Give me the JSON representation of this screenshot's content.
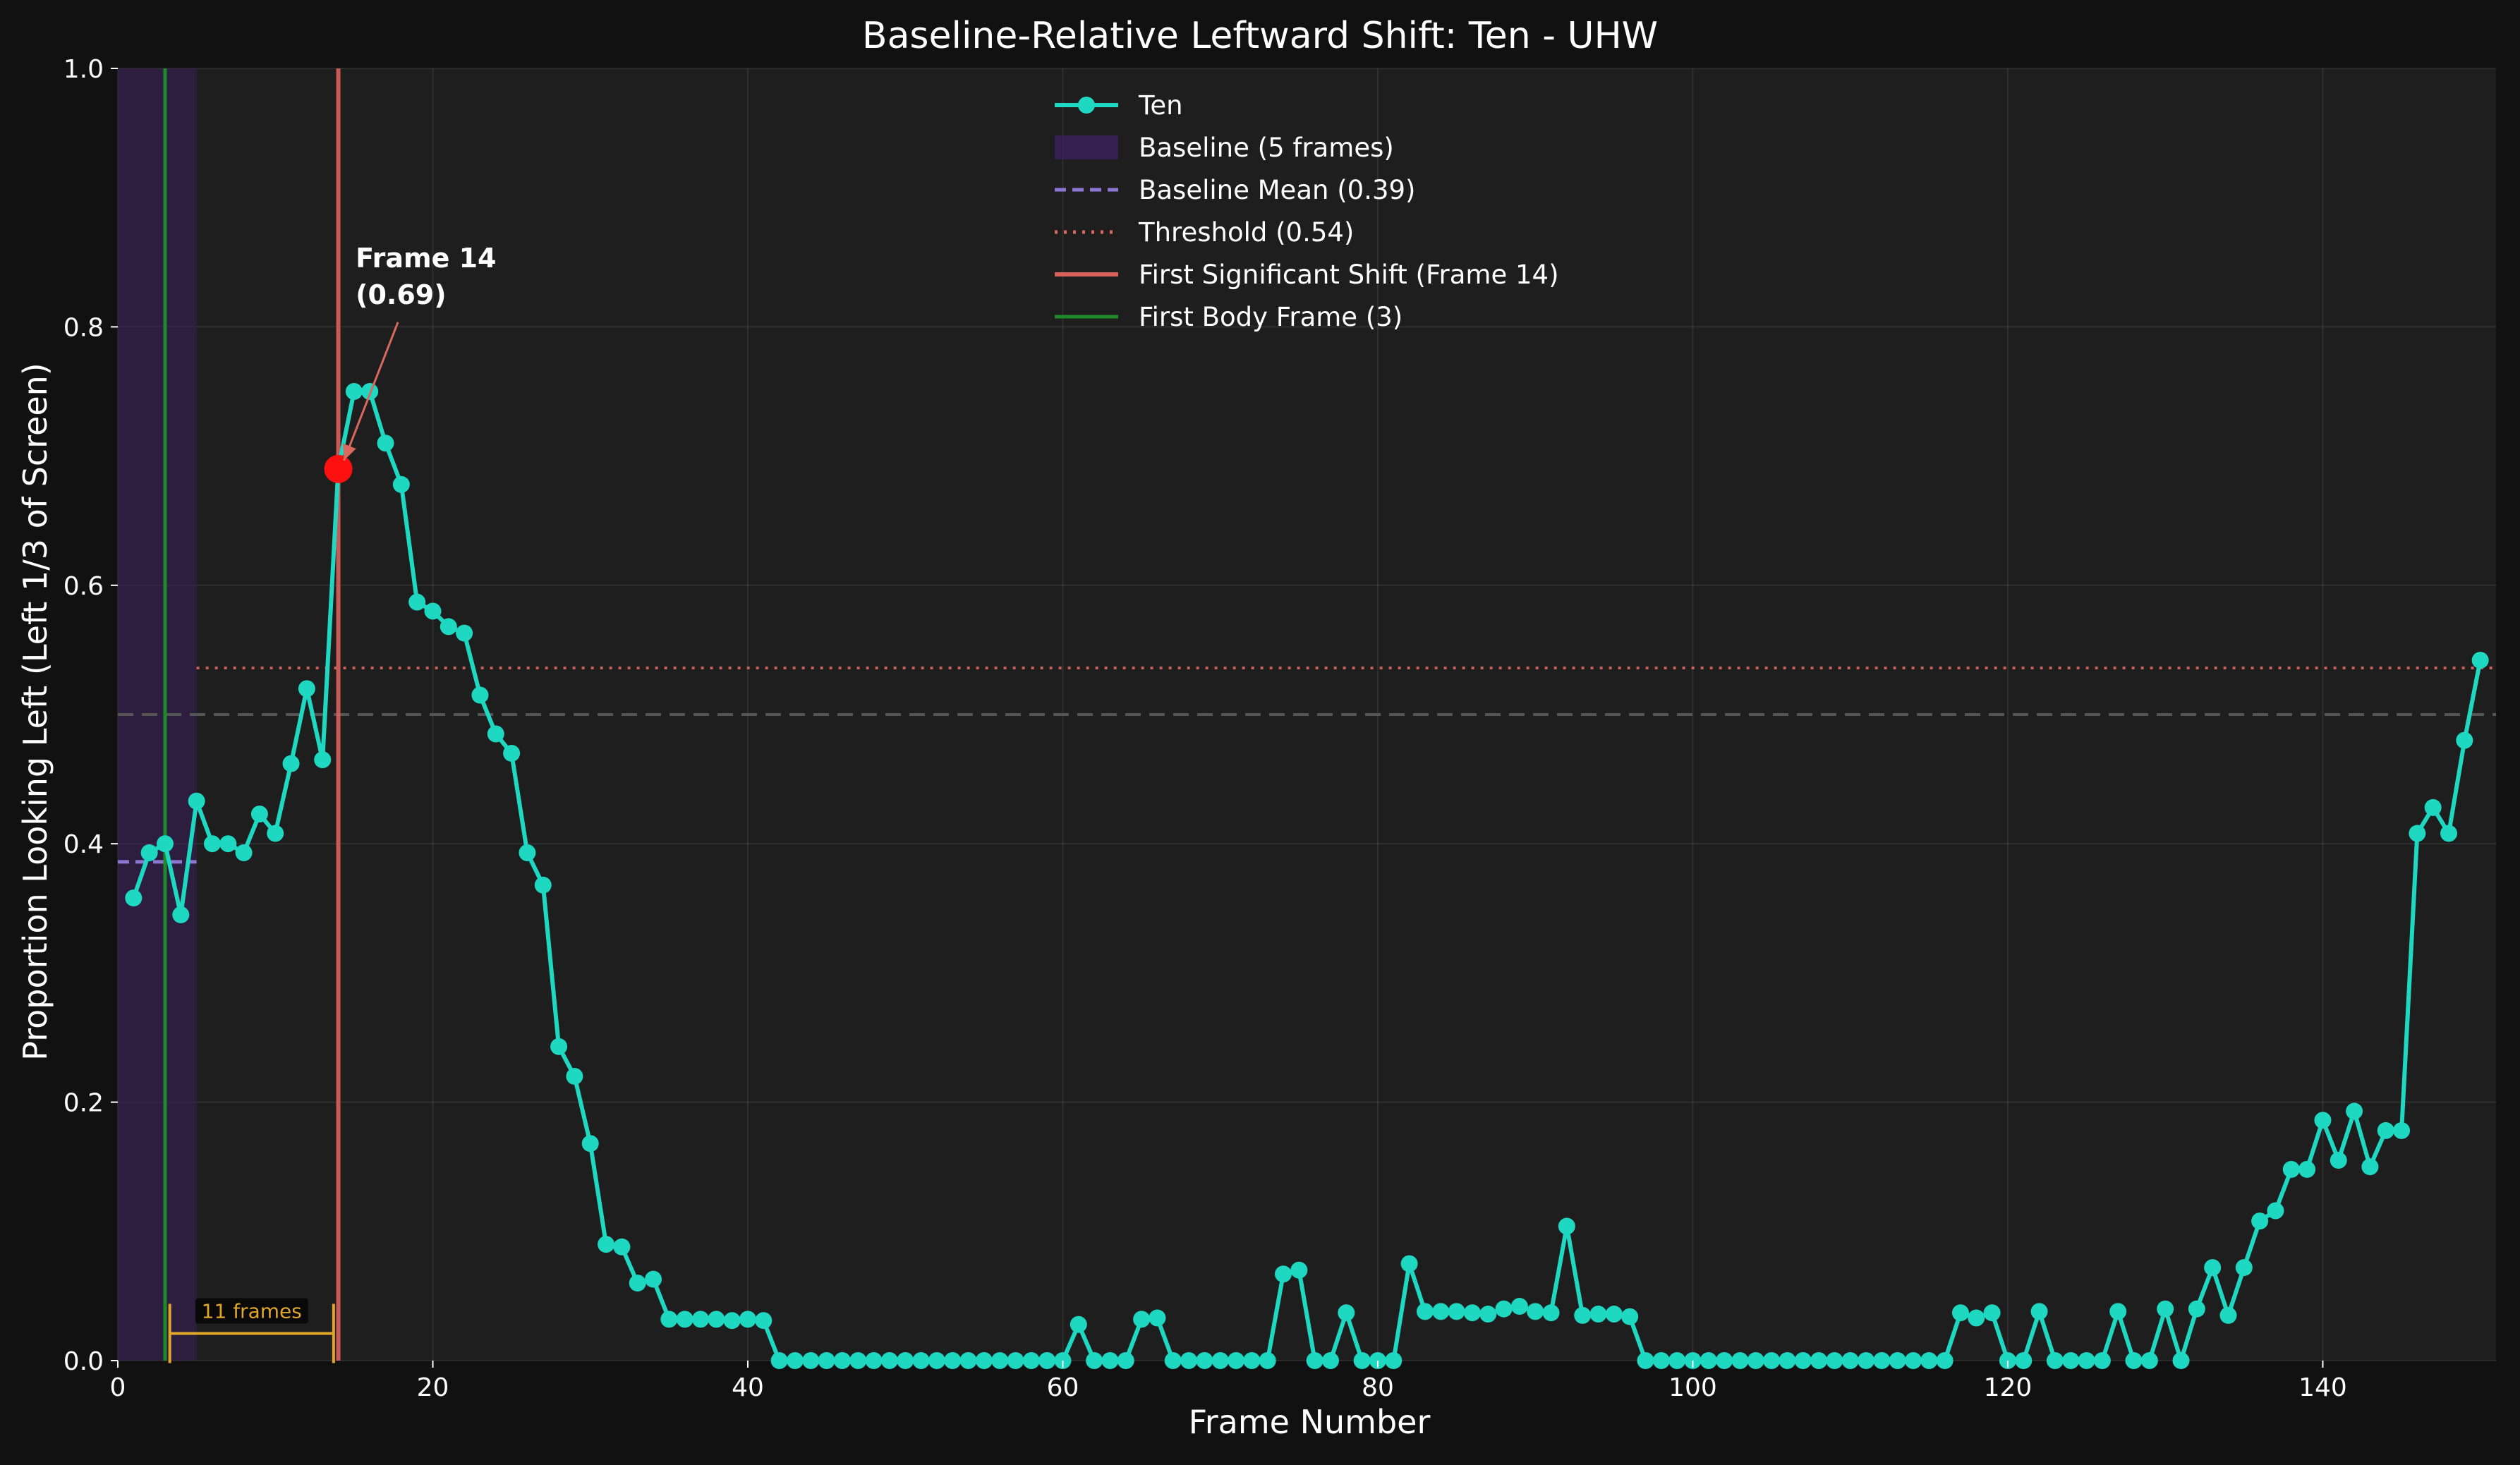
{
  "chart_data": {
    "type": "line",
    "title": "Baseline-Relative Leftward Shift: Ten - UHW",
    "xlabel": "Frame Number",
    "ylabel": "Proportion Looking Left (Left 1/3 of Screen)",
    "xlim": [
      0,
      151
    ],
    "ylim": [
      0,
      1.0
    ],
    "xticks": [
      "0",
      "20",
      "40",
      "60",
      "80",
      "100",
      "120",
      "140"
    ],
    "yticks": [
      "0.0",
      "0.2",
      "0.4",
      "0.6",
      "0.8",
      "1.0"
    ],
    "grid": true,
    "legend_position": "top-center",
    "colors": {
      "figure_bg": "#111111",
      "axes_bg": "#1e1e1e",
      "series": "#1ed8c1",
      "baseline_band": "#3a1f5c",
      "baseline_mean": "#8a78d4",
      "threshold": "#d9685f",
      "first_shift": "#d9605b",
      "first_body": "#1e8a2a",
      "reference": "#555555",
      "bracket": "#e0a62a",
      "highlight": "#ff1010",
      "text": "#ffffff"
    },
    "series": [
      {
        "name": "Ten",
        "x": [
          1,
          2,
          3,
          4,
          5,
          6,
          7,
          8,
          9,
          10,
          11,
          12,
          13,
          14,
          15,
          16,
          17,
          18,
          19,
          20,
          21,
          22,
          23,
          24,
          25,
          26,
          27,
          28,
          29,
          30,
          31,
          32,
          33,
          34,
          35,
          36,
          37,
          38,
          39,
          40,
          41,
          42,
          43,
          44,
          45,
          46,
          47,
          48,
          49,
          50,
          51,
          52,
          53,
          54,
          55,
          56,
          57,
          58,
          59,
          60,
          61,
          62,
          63,
          64,
          65,
          66,
          67,
          68,
          69,
          70,
          71,
          72,
          73,
          74,
          75,
          76,
          77,
          78,
          79,
          80,
          81,
          82,
          83,
          84,
          85,
          86,
          87,
          88,
          89,
          90,
          91,
          92,
          93,
          94,
          95,
          96,
          97,
          98,
          99,
          100,
          101,
          102,
          103,
          104,
          105,
          106,
          107,
          108,
          109,
          110,
          111,
          112,
          113,
          114,
          115,
          116,
          117,
          118,
          119,
          120,
          121,
          122,
          123,
          124,
          125,
          126,
          127,
          128,
          129,
          130,
          131,
          132,
          133,
          134,
          135,
          136,
          137,
          138,
          139,
          140,
          141,
          142,
          143,
          144,
          145,
          146,
          147,
          148,
          149,
          150
        ],
        "values": [
          0.358,
          0.393,
          0.4,
          0.345,
          0.433,
          0.4,
          0.4,
          0.393,
          0.423,
          0.408,
          0.462,
          0.52,
          0.465,
          0.69,
          0.75,
          0.75,
          0.71,
          0.678,
          0.587,
          0.58,
          0.568,
          0.563,
          0.515,
          0.485,
          0.47,
          0.393,
          0.368,
          0.243,
          0.22,
          0.168,
          0.09,
          0.088,
          0.06,
          0.063,
          0.032,
          0.032,
          0.032,
          0.032,
          0.031,
          0.032,
          0.031,
          0,
          0,
          0,
          0,
          0,
          0,
          0,
          0,
          0,
          0,
          0,
          0,
          0,
          0,
          0,
          0,
          0,
          0,
          0,
          0.028,
          0,
          0,
          0,
          0.032,
          0.033,
          0,
          0,
          0,
          0,
          0,
          0,
          0,
          0.067,
          0.07,
          0,
          0,
          0.037,
          0,
          0,
          0,
          0.075,
          0.038,
          0.038,
          0.038,
          0.037,
          0.036,
          0.04,
          0.042,
          0.038,
          0.037,
          0.104,
          0.035,
          0.036,
          0.036,
          0.034,
          0,
          0,
          0,
          0,
          0,
          0,
          0,
          0,
          0,
          0,
          0,
          0,
          0,
          0,
          0,
          0,
          0,
          0,
          0,
          0,
          0.037,
          0.033,
          0.037,
          0,
          0,
          0.038,
          0,
          0,
          0,
          0,
          0.038,
          0,
          0,
          0.04,
          0,
          0.04,
          0.072,
          0.035,
          0.072,
          0.108,
          0.116,
          0.148,
          0.148,
          0.186,
          0.155,
          0.193,
          0.15,
          0.178,
          0.178,
          0.408,
          0.428,
          0.408,
          0.48,
          0.542
        ]
      }
    ],
    "baseline": {
      "label": "Baseline (5 frames)",
      "x_start": 0,
      "x_end": 5
    },
    "baseline_mean": {
      "label": "Baseline Mean (0.39)",
      "value": 0.386,
      "x_start": 0,
      "x_end": 5
    },
    "threshold": {
      "label": "Threshold (0.54)",
      "value": 0.536,
      "x_start": 5,
      "x_end": 151
    },
    "reference_line": {
      "value": 0.5
    },
    "first_shift": {
      "label": "First Significant Shift (Frame 14)",
      "x": 14,
      "y": 0.69
    },
    "first_body": {
      "label": "First Body Frame (3)",
      "x": 3
    },
    "annotation": {
      "line1": "Frame 14",
      "line2": "(0.69)",
      "x": 14,
      "y": 0.69,
      "text_x": 15.1,
      "text_y": 0.82
    },
    "bracket": {
      "label": "11 frames",
      "x_start": 3.3,
      "x_end": 13.7,
      "y": 0.021
    }
  }
}
